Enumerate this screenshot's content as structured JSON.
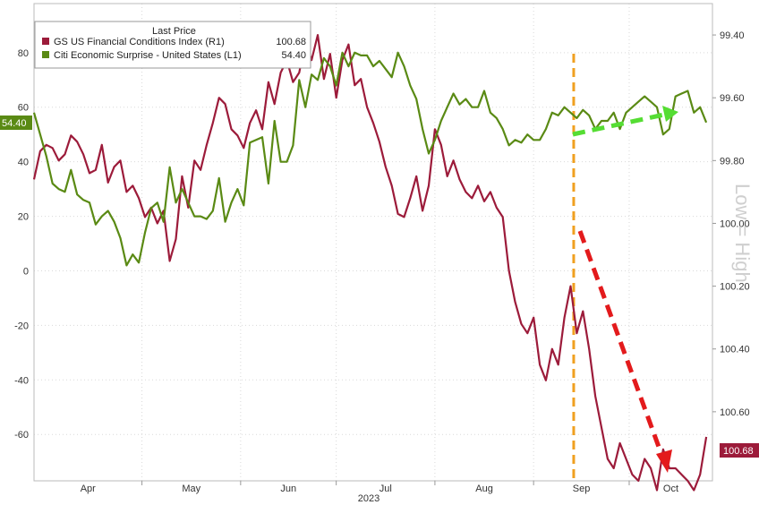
{
  "chart_data": {
    "type": "line",
    "legend": {
      "header": "Last Price",
      "placement": "top-left"
    },
    "series": [
      {
        "name": "GS US Financial Conditions Index (R1)",
        "axis": "right",
        "last_value": "100.68",
        "color": "#9c1b3a",
        "x": [
          0,
          2,
          4,
          6,
          8,
          10,
          12,
          14,
          16,
          18,
          20,
          22,
          24,
          26,
          28,
          30,
          32,
          34,
          36,
          38,
          40,
          42,
          44,
          46,
          48,
          50,
          52,
          54,
          56,
          58,
          60,
          62,
          64,
          66,
          68,
          70,
          72,
          74,
          76,
          78,
          80,
          82,
          84,
          86,
          88,
          90,
          92,
          94,
          96,
          98,
          100,
          102,
          104,
          106,
          108,
          110,
          112,
          114,
          116,
          118,
          120,
          122,
          124,
          126,
          128,
          130,
          132,
          134,
          136,
          138,
          140,
          142,
          144,
          146,
          148,
          150,
          152,
          154,
          156,
          158,
          160,
          162,
          164,
          166,
          168,
          170,
          172,
          174,
          176,
          178,
          180,
          182,
          184,
          186,
          188,
          190,
          192,
          194,
          196,
          198,
          200,
          202,
          204,
          206,
          208,
          210,
          212,
          214,
          216,
          218
        ],
        "values": [
          99.86,
          99.77,
          99.75,
          99.76,
          99.8,
          99.78,
          99.72,
          99.74,
          99.78,
          99.84,
          99.83,
          99.75,
          99.87,
          99.82,
          99.8,
          99.9,
          99.88,
          99.92,
          99.98,
          99.95,
          100.0,
          99.96,
          100.12,
          100.05,
          99.85,
          99.95,
          99.8,
          99.83,
          99.75,
          99.68,
          99.6,
          99.62,
          99.7,
          99.72,
          99.76,
          99.68,
          99.64,
          99.7,
          99.55,
          99.62,
          99.52,
          99.48,
          99.55,
          99.52,
          99.42,
          99.48,
          99.4,
          99.54,
          99.46,
          99.6,
          99.48,
          99.43,
          99.56,
          99.54,
          99.63,
          99.68,
          99.74,
          99.82,
          99.88,
          99.97,
          99.98,
          99.92,
          99.85,
          99.96,
          99.88,
          99.7,
          99.75,
          99.85,
          99.8,
          99.86,
          99.9,
          99.92,
          99.88,
          99.93,
          99.9,
          99.95,
          99.98,
          100.15,
          100.25,
          100.32,
          100.35,
          100.3,
          100.45,
          100.5,
          100.4,
          100.45,
          100.3,
          100.2,
          100.35,
          100.28,
          100.4,
          100.55,
          100.65,
          100.75,
          100.78,
          100.7,
          100.75,
          100.8,
          100.82,
          100.75,
          100.78,
          100.85,
          100.72,
          100.78,
          100.78,
          100.8,
          100.82,
          100.85,
          100.8,
          100.68
        ]
      },
      {
        "name": "Citi Economic Surprise - United States (L1)",
        "axis": "left",
        "last_value": "54.40",
        "color": "#5a8a14",
        "x": [
          0,
          2,
          4,
          6,
          8,
          10,
          12,
          14,
          16,
          18,
          20,
          22,
          24,
          26,
          28,
          30,
          32,
          34,
          36,
          38,
          40,
          42,
          44,
          46,
          48,
          50,
          52,
          54,
          56,
          58,
          60,
          62,
          64,
          66,
          68,
          70,
          72,
          74,
          76,
          78,
          80,
          82,
          84,
          86,
          88,
          90,
          92,
          94,
          96,
          98,
          100,
          102,
          104,
          106,
          108,
          110,
          112,
          114,
          116,
          118,
          120,
          122,
          124,
          126,
          128,
          130,
          132,
          134,
          136,
          138,
          140,
          142,
          144,
          146,
          148,
          150,
          152,
          154,
          156,
          158,
          160,
          162,
          164,
          166,
          168,
          170,
          172,
          174,
          176,
          178,
          180,
          182,
          184,
          186,
          188,
          190,
          192,
          194,
          196,
          198,
          200,
          202,
          204,
          206,
          208,
          210,
          212,
          214,
          216,
          218
        ],
        "values": [
          58,
          50,
          42,
          32,
          30,
          29,
          37,
          28,
          26,
          25,
          17,
          20,
          22,
          18,
          12,
          2,
          6,
          3,
          14,
          23,
          25,
          18,
          38,
          25,
          30,
          25,
          20,
          20,
          19,
          22,
          34,
          18,
          25,
          30,
          24,
          47,
          48,
          49,
          32,
          55,
          40,
          40,
          46,
          70,
          60,
          72,
          70,
          78,
          75,
          68,
          80,
          75,
          80,
          79,
          79,
          75,
          77,
          74,
          71,
          80,
          75,
          68,
          63,
          52,
          43,
          48,
          55,
          60,
          65,
          61,
          63,
          60,
          60,
          66,
          58,
          56,
          52,
          46,
          48,
          47,
          50,
          48,
          48,
          52,
          58,
          57,
          60,
          58,
          56,
          59,
          57,
          52,
          55,
          55,
          58,
          52,
          58,
          60,
          62,
          64,
          62,
          60,
          50,
          52,
          64,
          65,
          66,
          58,
          60,
          54.4
        ]
      }
    ],
    "x_axis": {
      "months": [
        "Apr",
        "May",
        "Jun",
        "Jul",
        "Aug",
        "Sep",
        "Oct"
      ],
      "year_label": "2023",
      "range": [
        0,
        220
      ]
    },
    "y_left": {
      "ticks": [
        80,
        60,
        40,
        20,
        0,
        -20,
        -40,
        -60
      ],
      "ylim": [
        -77,
        98
      ]
    },
    "y_right": {
      "ticks": [
        "99.40",
        "99.60",
        "99.80",
        "100.00",
        "100.20",
        "100.40",
        "100.60"
      ],
      "tick_values": [
        99.4,
        99.6,
        99.8,
        100.0,
        100.2,
        100.4,
        100.6
      ],
      "inverted": true,
      "ylim": [
        99.3,
        100.82
      ],
      "side_text": "Low = High"
    },
    "annotations": {
      "vline_x": 175,
      "vline_color": "#f0a020",
      "red_arrow_color": "#e31a1c",
      "green_arrow_color": "#55dd33"
    }
  }
}
